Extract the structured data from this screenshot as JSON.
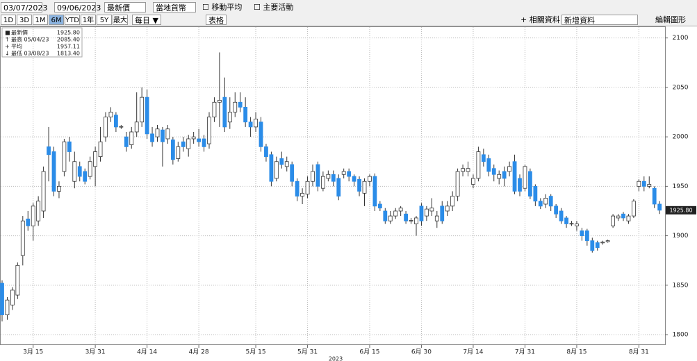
{
  "toolbar": {
    "start_date": "03/07/2023",
    "end_date": "09/06/2023",
    "field": "最新價",
    "currency": "當地貨幣",
    "moving_average": "移動平均",
    "events": "主要活動",
    "ranges": [
      "1D",
      "3D",
      "1M",
      "6M",
      "YTD",
      "1年",
      "5Y",
      "最大"
    ],
    "frequency": "每日 ▼",
    "table": "表格",
    "related": "+ 相關資料 ▾",
    "add_data": "新增資料",
    "edit_chart": "編輯圖形"
  },
  "chart_data": {
    "type": "candlestick",
    "legend": [
      {
        "name": "最新價",
        "value": "1925.80"
      },
      {
        "name": "最高 05/04/23",
        "value": "2085.40"
      },
      {
        "name": "平均",
        "value": "1957.11"
      },
      {
        "name": "最低 03/08/23",
        "value": "1813.40"
      }
    ],
    "up_color": "#ffffff",
    "down_color": "#2b8ce8",
    "open": [
      1852,
      1820,
      1830,
      1840,
      1880,
      1917,
      1910,
      1915,
      1925,
      1990,
      1985,
      1945,
      1965,
      1995,
      1955,
      1970,
      1965,
      1960,
      1970,
      1980,
      2000,
      2020,
      2022,
      2010,
      2000,
      1992,
      2005,
      2015,
      2040,
      2003,
      2000,
      2007,
      1998,
      1997,
      1978,
      1995,
      1988,
      1998,
      1998,
      1998,
      1993,
      2020,
      2035,
      2040,
      2015,
      2025,
      2035,
      2030,
      2015,
      2010,
      2015,
      1990,
      1982,
      1958,
      1978,
      1970,
      1972,
      1955,
      1940,
      1942,
      1955,
      1972,
      1948,
      1958,
      1962,
      1958,
      1962,
      1965,
      1960,
      1957,
      1943,
      1955,
      1960,
      1932,
      1925,
      1915,
      1920,
      1925,
      1922,
      1915,
      1912,
      1930,
      1920,
      1925,
      1915,
      1930,
      1925,
      1930,
      1940,
      1965,
      1965,
      1952,
      1958,
      1982,
      1978,
      1968,
      1958,
      1965,
      1965,
      1975,
      1958,
      1948,
      1965,
      1950,
      1935,
      1932,
      1940,
      1930,
      1925,
      1918,
      1912,
      1910,
      1905,
      1905,
      1895,
      1893,
      1893,
      1894,
      1910,
      1918,
      1922,
      1915,
      1920,
      1950,
      1955,
      1950,
      1948,
      1932
    ],
    "high": [
      1855,
      1838,
      1848,
      1873,
      1920,
      1925,
      1933,
      1940,
      1970,
      2010,
      1990,
      1955,
      1998,
      2000,
      1985,
      1975,
      1968,
      1980,
      1990,
      2010,
      2025,
      2030,
      2025,
      2012,
      2005,
      2010,
      2045,
      2050,
      2048,
      2010,
      2012,
      2010,
      2012,
      2000,
      1995,
      2000,
      2002,
      2005,
      2008,
      2002,
      2025,
      2040,
      2085.4,
      2060,
      2040,
      2045,
      2045,
      2040,
      2020,
      2025,
      2020,
      1993,
      1985,
      1980,
      1985,
      1980,
      1975,
      1958,
      1948,
      1960,
      1972,
      1975,
      1965,
      1966,
      1966,
      1962,
      1968,
      1968,
      1962,
      1960,
      1958,
      1962,
      1963,
      1935,
      1928,
      1925,
      1928,
      1930,
      1925,
      1918,
      1920,
      1933,
      1930,
      1938,
      1925,
      1935,
      1935,
      1945,
      1968,
      1972,
      1975,
      1962,
      1990,
      1988,
      1982,
      1972,
      1966,
      1970,
      1975,
      1982,
      1962,
      1972,
      1968,
      1952,
      1938,
      1942,
      1942,
      1932,
      1928,
      1920,
      1915,
      1915,
      1908,
      1907,
      1898,
      1895,
      1895,
      1896,
      1922,
      1922,
      1924,
      1922,
      1937,
      1957,
      1960,
      1960,
      1950,
      1935
    ],
    "low": [
      1813.4,
      1815,
      1825,
      1836,
      1870,
      1905,
      1895,
      1910,
      1918,
      1955,
      1940,
      1938,
      1960,
      1975,
      1948,
      1955,
      1952,
      1957,
      1950,
      1975,
      1995,
      2015,
      2005,
      2008,
      1985,
      1988,
      2000,
      2010,
      1998,
      1990,
      1995,
      1970,
      1993,
      1972,
      1975,
      1985,
      1980,
      1993,
      1990,
      1985,
      1988,
      2015,
      2010,
      2005,
      2008,
      2020,
      2025,
      2010,
      2000,
      2005,
      1985,
      1975,
      1950,
      1955,
      1968,
      1965,
      1950,
      1935,
      1932,
      1938,
      1950,
      1945,
      1945,
      1955,
      1950,
      1936,
      1958,
      1955,
      1950,
      1940,
      1930,
      1950,
      1925,
      1925,
      1912,
      1912,
      1917,
      1920,
      1912,
      1912,
      1900,
      1910,
      1915,
      1920,
      1908,
      1912,
      1920,
      1925,
      1935,
      1960,
      1960,
      1948,
      1955,
      1970,
      1960,
      1955,
      1952,
      1950,
      1960,
      1942,
      1940,
      1945,
      1937,
      1930,
      1927,
      1928,
      1925,
      1918,
      1912,
      1908,
      1910,
      1905,
      1895,
      1890,
      1883,
      1885,
      1891,
      1893,
      1908,
      1915,
      1915,
      1912,
      1918,
      1945,
      1945,
      1948,
      1928,
      1922
    ],
    "close": [
      1820,
      1835,
      1845,
      1870,
      1915,
      1910,
      1930,
      1935,
      1965,
      1982,
      1945,
      1950,
      1995,
      1985,
      1975,
      1960,
      1955,
      1975,
      1985,
      1995,
      2020,
      2025,
      2010,
      2010.5,
      1990,
      2005,
      2015,
      2040,
      2003,
      1995,
      2008,
      1995,
      2008,
      1977,
      1990,
      1990,
      1998,
      2000,
      1995,
      1990,
      2020,
      2035,
      2037,
      2010,
      2025,
      2035,
      2030,
      2015,
      2010,
      2018,
      1990,
      1980,
      1955,
      1975,
      1972,
      1975,
      1955,
      1940,
      1943,
      1955,
      1965,
      1950,
      1960,
      1962,
      1955,
      1940,
      1965,
      1960,
      1955,
      1945,
      1955,
      1960,
      1930,
      1928,
      1915,
      1920,
      1925,
      1928,
      1915,
      1915.5,
      1918,
      1915,
      1927,
      1928,
      1920,
      1915,
      1930,
      1940,
      1965,
      1968,
      1968,
      1958,
      1985,
      1975,
      1965,
      1962,
      1962,
      1958,
      1970,
      1945,
      1945,
      1970,
      1940,
      1935,
      1930,
      1938,
      1930,
      1922,
      1915,
      1912,
      1912.5,
      1912,
      1900,
      1895,
      1885,
      1888,
      1893.5,
      1895,
      1920,
      1920,
      1918,
      1920,
      1935,
      1955,
      1950,
      1952,
      1932,
      1925.8
    ],
    "last": {
      "value": 1925.8,
      "label": "1925.80"
    },
    "ylim": [
      1789.5,
      2111
    ],
    "yticks": [
      1800,
      1850,
      1900,
      1950,
      2000,
      2050,
      2100
    ],
    "xticks": [
      {
        "value": 6,
        "label": "3月 15"
      },
      {
        "value": 18,
        "label": "3月 31"
      },
      {
        "value": 28,
        "label": "4月 14"
      },
      {
        "value": 38,
        "label": "4月 28"
      },
      {
        "value": 49,
        "label": "5月 15"
      },
      {
        "value": 59,
        "label": "5月 31"
      },
      {
        "value": 71,
        "label": "6月 15"
      },
      {
        "value": 81,
        "label": "6月 30"
      },
      {
        "value": 91,
        "label": "7月 14"
      },
      {
        "value": 101,
        "label": "7月 31"
      },
      {
        "value": 111,
        "label": "8月 15"
      },
      {
        "value": 123,
        "label": "8月 31"
      }
    ],
    "x_label": "2023",
    "grid": true
  }
}
